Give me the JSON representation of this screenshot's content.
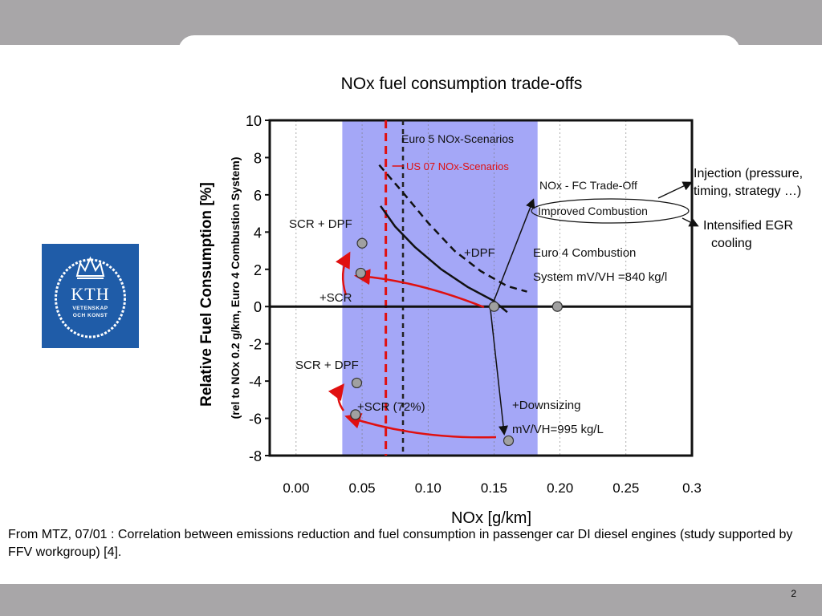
{
  "slide": {
    "title": "NOx fuel consumption trade-offs",
    "page_number": "2",
    "caption": "From MTZ, 07/01 : Correlation between emissions reduction and fuel consumption in passenger car DI diesel engines (study supported by FFV workgroup) [4].",
    "notes": {
      "injection": [
        "Injection (pressure,",
        "timing, strategy …)"
      ],
      "egr": [
        "Intensified EGR",
        "cooling"
      ]
    },
    "logo": {
      "text": "KTH",
      "line1": "VETENSKAP",
      "line2": "OCH KONST",
      "color": "#1f5ca8"
    }
  },
  "chart_data": {
    "type": "line",
    "xlabel": "NOx [g/km]",
    "ylabel": "Relative Fuel Consumption [%]",
    "ylabel_sub": "(rel to NOx 0.2 g/km, Euro 4 Combustion System)",
    "xlim": [
      -0.02,
      0.3
    ],
    "ylim": [
      -8,
      10
    ],
    "x_ticks": [
      0.0,
      0.05,
      0.1,
      0.15,
      0.2,
      0.25,
      0.3
    ],
    "x_tick_labels": [
      "0.00",
      "0.05",
      "0.10",
      "0.15",
      "0.20",
      "0.25",
      "0.3"
    ],
    "y_ticks": [
      10,
      8,
      6,
      4,
      2,
      0,
      -2,
      -4,
      -6,
      -8
    ],
    "y_tick_labels": [
      "10",
      "8",
      "6",
      "4",
      "2",
      "0",
      "-2",
      "-4",
      "-6",
      "-8"
    ],
    "shaded_band": [
      0.035,
      0.183
    ],
    "reference_lines": [
      {
        "x": 0.068,
        "label": "US 07 NOx-Scenarios",
        "color": "#e01010",
        "style": "dashed"
      },
      {
        "x": 0.081,
        "label": "Euro 5 NOx-Scenarios",
        "color": "#222222",
        "style": "dashed"
      }
    ],
    "series": [
      {
        "points": [
          [
            0.064,
            5.4
          ],
          [
            0.075,
            4.3
          ],
          [
            0.09,
            3.2
          ],
          [
            0.11,
            2.0
          ],
          [
            0.13,
            1.05
          ],
          [
            0.15,
            0.3
          ],
          [
            0.16,
            -0.3
          ]
        ],
        "style": "solid"
      },
      {
        "points": [
          [
            0.063,
            7.6
          ],
          [
            0.08,
            6.2
          ],
          [
            0.1,
            4.5
          ],
          [
            0.12,
            3.0
          ],
          [
            0.14,
            1.9
          ],
          [
            0.16,
            1.1
          ],
          [
            0.175,
            0.8
          ]
        ],
        "style": "dashed"
      }
    ],
    "points": [
      {
        "x": 0.05,
        "y": 3.4,
        "label": "SCR + DPF"
      },
      {
        "x": 0.049,
        "y": 1.8,
        "label": "+SCR"
      },
      {
        "x": 0.15,
        "y": 0.0,
        "label": ""
      },
      {
        "x": 0.198,
        "y": 0.0,
        "label": ""
      },
      {
        "x": 0.046,
        "y": -4.1,
        "label": "SCR + DPF"
      },
      {
        "x": 0.045,
        "y": -5.8,
        "label": "+SCR (72%)"
      },
      {
        "x": 0.161,
        "y": -7.2,
        "label": "mV/VH=995 kg/L"
      }
    ],
    "annotations": {
      "trade_off": "NOx - FC Trade-Off",
      "improved": "Improved Combustion",
      "dpf": "+DPF",
      "euro4_line1": "Euro 4 Combustion",
      "euro4_line2": "System mV/VH =840 kg/l",
      "downsizing": "+Downsizing"
    },
    "colors": {
      "band": "#5a5ef0",
      "red": "#e01010",
      "marker": "#a0a0a0",
      "curve": "#111111"
    }
  }
}
